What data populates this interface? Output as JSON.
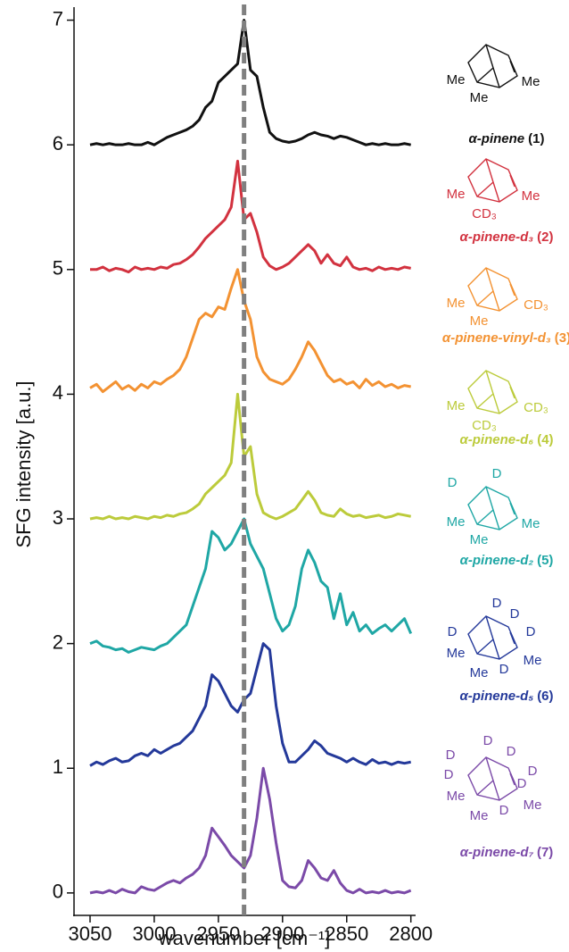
{
  "chart_data": {
    "type": "line",
    "y_label": "SFG intensity [a.u.]",
    "x_label": "wavenumber [cm⁻¹]",
    "xlim": [
      3062.5,
      2797
    ],
    "ylim": [
      -0.18,
      7.09
    ],
    "xticks": [
      3050,
      3000,
      2950,
      2900,
      2850,
      2800
    ],
    "yticks": [
      0,
      1,
      2,
      3,
      4,
      5,
      6,
      7
    ],
    "vline": 2930,
    "vline_color": "#808080",
    "x": [
      3050,
      3045,
      3040,
      3035,
      3030,
      3025,
      3020,
      3015,
      3010,
      3005,
      3000,
      2995,
      2990,
      2985,
      2980,
      2975,
      2970,
      2965,
      2960,
      2955,
      2950,
      2945,
      2940,
      2935,
      2930,
      2925,
      2920,
      2915,
      2910,
      2905,
      2900,
      2895,
      2890,
      2885,
      2880,
      2875,
      2870,
      2865,
      2860,
      2855,
      2850,
      2845,
      2840,
      2835,
      2830,
      2825,
      2820,
      2815,
      2810,
      2805,
      2800
    ],
    "series": [
      {
        "label": "α-pinene",
        "compound": "(1)",
        "color": "#111111",
        "atoms": [
          "Me",
          "Me",
          "Me"
        ],
        "values": [
          6.0,
          6.01,
          6.0,
          6.01,
          6.0,
          6.0,
          6.01,
          6.0,
          6.0,
          6.02,
          6.0,
          6.03,
          6.06,
          6.08,
          6.1,
          6.12,
          6.15,
          6.2,
          6.3,
          6.35,
          6.5,
          6.55,
          6.6,
          6.65,
          7.0,
          6.6,
          6.55,
          6.3,
          6.1,
          6.05,
          6.03,
          6.02,
          6.03,
          6.05,
          6.08,
          6.1,
          6.08,
          6.07,
          6.05,
          6.07,
          6.06,
          6.04,
          6.02,
          6.0,
          6.01,
          6.0,
          6.01,
          6.0,
          6.0,
          6.01,
          6.0
        ]
      },
      {
        "label": "α-pinene-d₃",
        "compound": "(2)",
        "color": "#d2323f",
        "atoms": [
          "Me",
          "CD₃",
          "Me"
        ],
        "values": [
          5.0,
          5.0,
          5.02,
          4.99,
          5.01,
          5.0,
          4.98,
          5.02,
          5.0,
          5.01,
          5.0,
          5.02,
          5.01,
          5.04,
          5.05,
          5.08,
          5.12,
          5.18,
          5.25,
          5.3,
          5.35,
          5.4,
          5.5,
          5.87,
          5.4,
          5.45,
          5.3,
          5.1,
          5.03,
          5.0,
          5.02,
          5.05,
          5.1,
          5.15,
          5.2,
          5.15,
          5.05,
          5.12,
          5.05,
          5.03,
          5.1,
          5.02,
          5.0,
          5.01,
          4.99,
          5.02,
          5.0,
          5.01,
          5.0,
          5.02,
          5.01
        ]
      },
      {
        "label": "α-pinene-vinyl-d₃",
        "compound": "(3)",
        "color": "#f39232",
        "atoms": [
          "Me",
          "Me",
          "CD₃"
        ],
        "values": [
          4.05,
          4.08,
          4.02,
          4.06,
          4.1,
          4.04,
          4.07,
          4.03,
          4.08,
          4.05,
          4.1,
          4.08,
          4.12,
          4.15,
          4.2,
          4.3,
          4.45,
          4.6,
          4.65,
          4.62,
          4.7,
          4.68,
          4.85,
          5.0,
          4.75,
          4.6,
          4.3,
          4.18,
          4.12,
          4.1,
          4.08,
          4.12,
          4.2,
          4.3,
          4.42,
          4.35,
          4.25,
          4.15,
          4.1,
          4.12,
          4.08,
          4.1,
          4.05,
          4.12,
          4.07,
          4.1,
          4.06,
          4.08,
          4.05,
          4.07,
          4.06
        ]
      },
      {
        "label": "α-pinene-d₆",
        "compound": "(4)",
        "color": "#bccb3b",
        "atoms": [
          "Me",
          "CD₃",
          "CD₃"
        ],
        "values": [
          3.0,
          3.01,
          3.0,
          3.02,
          3.0,
          3.01,
          3.0,
          3.02,
          3.01,
          3.0,
          3.02,
          3.01,
          3.03,
          3.02,
          3.04,
          3.05,
          3.08,
          3.12,
          3.2,
          3.25,
          3.3,
          3.35,
          3.45,
          4.0,
          3.5,
          3.58,
          3.2,
          3.05,
          3.02,
          3.0,
          3.02,
          3.05,
          3.08,
          3.15,
          3.22,
          3.15,
          3.05,
          3.03,
          3.02,
          3.08,
          3.04,
          3.02,
          3.03,
          3.01,
          3.02,
          3.03,
          3.01,
          3.02,
          3.04,
          3.03,
          3.02
        ]
      },
      {
        "label": "α-pinene-d₂",
        "compound": "(5)",
        "color": "#1fa7a5",
        "atoms": [
          "D",
          "D",
          "Me",
          "Me",
          "Me"
        ],
        "values": [
          2.0,
          2.02,
          1.98,
          1.97,
          1.95,
          1.96,
          1.93,
          1.95,
          1.97,
          1.96,
          1.95,
          1.98,
          2.0,
          2.05,
          2.1,
          2.15,
          2.3,
          2.45,
          2.6,
          2.9,
          2.85,
          2.75,
          2.8,
          2.9,
          3.0,
          2.8,
          2.7,
          2.6,
          2.4,
          2.2,
          2.1,
          2.15,
          2.3,
          2.6,
          2.75,
          2.65,
          2.5,
          2.45,
          2.2,
          2.4,
          2.15,
          2.25,
          2.1,
          2.15,
          2.08,
          2.12,
          2.15,
          2.1,
          2.15,
          2.2,
          2.08
        ]
      },
      {
        "label": "α-pinene-d₅",
        "compound": "(6)",
        "color": "#24399a",
        "atoms": [
          "D",
          "D",
          "D",
          "D",
          "D",
          "Me",
          "Me",
          "Me"
        ],
        "values": [
          1.02,
          1.05,
          1.03,
          1.06,
          1.08,
          1.05,
          1.06,
          1.1,
          1.12,
          1.1,
          1.15,
          1.12,
          1.15,
          1.18,
          1.2,
          1.25,
          1.3,
          1.4,
          1.5,
          1.75,
          1.7,
          1.6,
          1.5,
          1.45,
          1.55,
          1.6,
          1.8,
          2.0,
          1.95,
          1.5,
          1.2,
          1.05,
          1.05,
          1.1,
          1.15,
          1.22,
          1.18,
          1.12,
          1.1,
          1.08,
          1.05,
          1.08,
          1.05,
          1.03,
          1.07,
          1.04,
          1.05,
          1.03,
          1.05,
          1.04,
          1.05
        ]
      },
      {
        "label": "α-pinene-d₇",
        "compound": "(7)",
        "color": "#7b4aa8",
        "atoms": [
          "D",
          "D",
          "D",
          "D",
          "D",
          "D",
          "D",
          "Me",
          "Me",
          "Me"
        ],
        "values": [
          0.0,
          0.01,
          0.0,
          0.02,
          0.0,
          0.03,
          0.01,
          0.0,
          0.05,
          0.03,
          0.02,
          0.05,
          0.08,
          0.1,
          0.08,
          0.12,
          0.15,
          0.2,
          0.3,
          0.52,
          0.45,
          0.38,
          0.3,
          0.25,
          0.2,
          0.3,
          0.6,
          1.0,
          0.75,
          0.4,
          0.1,
          0.05,
          0.04,
          0.1,
          0.26,
          0.2,
          0.12,
          0.1,
          0.18,
          0.08,
          0.02,
          0.0,
          0.03,
          0.0,
          0.01,
          0.0,
          0.02,
          0.0,
          0.01,
          0.0,
          0.02
        ]
      }
    ]
  }
}
